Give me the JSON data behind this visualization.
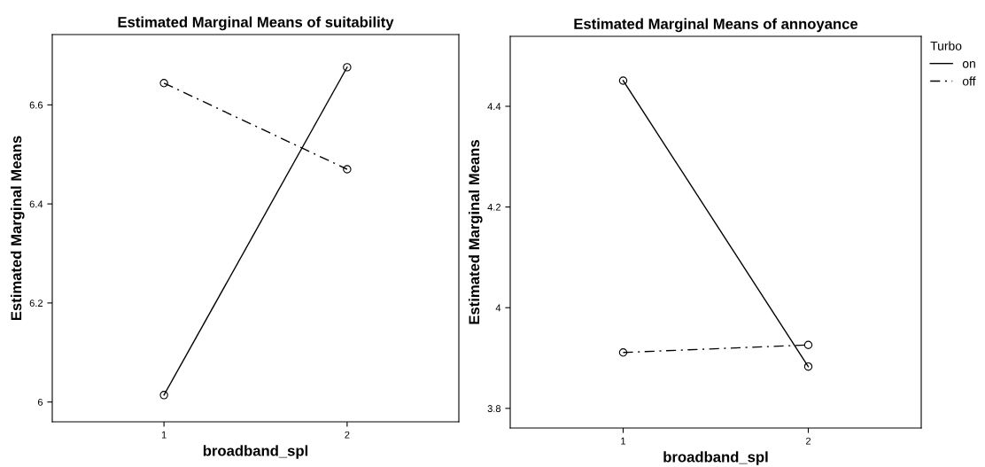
{
  "chart_data": [
    {
      "type": "line",
      "title": "Estimated Marginal Means of suitability",
      "xlabel": "broadband_spl",
      "ylabel": "Estimated Marginal Means",
      "categories": [
        "1",
        "2"
      ],
      "ylim": [
        5.96,
        6.742
      ],
      "yticks": [
        6,
        6.2,
        6.4,
        6.6
      ],
      "marker": "circle",
      "grid": false,
      "legend": false,
      "series": [
        {
          "color": "#000000",
          "line_style": "solid",
          "values": [
            6.014,
            6.676
          ]
        },
        {
          "color": "#000000",
          "line_style": "dashdot",
          "values": [
            6.644,
            6.47
          ]
        }
      ]
    },
    {
      "type": "line",
      "title": "Estimated Marginal Means of annoyance",
      "xlabel": "broadband_spl",
      "ylabel": "Estimated Marginal Means",
      "categories": [
        "1",
        "2"
      ],
      "ylim": [
        3.761,
        4.539
      ],
      "yticks": [
        3.8,
        4,
        4.2,
        4.4
      ],
      "marker": "circle",
      "grid": false,
      "legend": "top right",
      "legend_title": "Turbo",
      "series": [
        {
          "name": "on",
          "color": "#000000",
          "line_style": "solid",
          "values": [
            4.451,
            3.883
          ]
        },
        {
          "name": "off",
          "color": "#000000",
          "line_style": "dashdot",
          "values": [
            3.911,
            3.926
          ]
        }
      ]
    }
  ]
}
